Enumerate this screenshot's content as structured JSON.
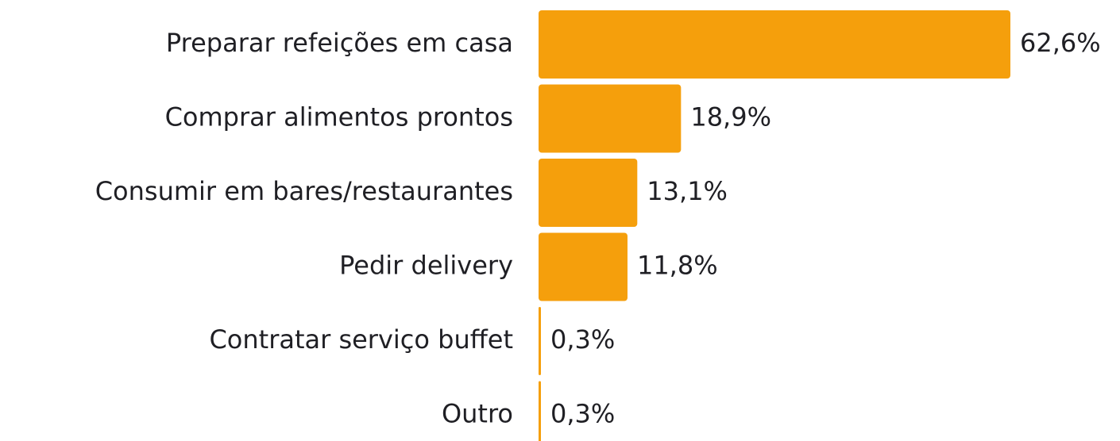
{
  "chart_data": {
    "type": "bar",
    "orientation": "horizontal",
    "categories": [
      "Preparar refeições em casa",
      "Comprar alimentos prontos",
      "Consumir em bares/restaurantes",
      "Pedir delivery",
      "Contratar serviço buffet",
      "Outro"
    ],
    "values": [
      62.6,
      18.9,
      13.1,
      11.8,
      0.3,
      0.3
    ],
    "value_labels": [
      "62,6%",
      "18,9%",
      "13,1%",
      "11,8%",
      "0,3%",
      "0,3%"
    ],
    "color": "#f59f0c"
  }
}
